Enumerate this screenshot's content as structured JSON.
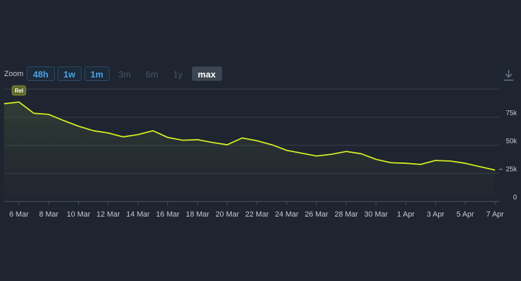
{
  "zoom": {
    "label": "Zoom",
    "buttons": [
      {
        "label": "48h",
        "state": "active"
      },
      {
        "label": "1w",
        "state": "active"
      },
      {
        "label": "1m",
        "state": "active"
      },
      {
        "label": "3m",
        "state": "disabled"
      },
      {
        "label": "6m",
        "state": "disabled"
      },
      {
        "label": "1y",
        "state": "disabled"
      },
      {
        "label": "max",
        "state": "selected"
      }
    ]
  },
  "download_icon": "download-icon",
  "colors": {
    "background": "#1e2430",
    "line": "#d5ee22",
    "grid": "#3a4150",
    "text": "#c6cbd3",
    "button_accent": "#4ba3e3"
  },
  "chart_data": {
    "type": "area",
    "x": [
      "5 Mar",
      "6 Mar",
      "7 Mar",
      "8 Mar",
      "9 Mar",
      "10 Mar",
      "11 Mar",
      "12 Mar",
      "13 Mar",
      "14 Mar",
      "15 Mar",
      "16 Mar",
      "17 Mar",
      "18 Mar",
      "19 Mar",
      "20 Mar",
      "21 Mar",
      "22 Mar",
      "23 Mar",
      "24 Mar",
      "25 Mar",
      "26 Mar",
      "27 Mar",
      "28 Mar",
      "29 Mar",
      "30 Mar",
      "31 Mar",
      "1 Apr",
      "2 Apr",
      "3 Apr",
      "4 Apr",
      "5 Apr",
      "6 Apr",
      "7 Apr"
    ],
    "series": [
      {
        "values": [
          87000,
          88500,
          78500,
          77500,
          72000,
          67000,
          63000,
          61000,
          57500,
          59500,
          63000,
          57000,
          54500,
          55000,
          52500,
          50500,
          56500,
          54000,
          50500,
          45500,
          43000,
          40500,
          42000,
          44500,
          42500,
          37500,
          34500,
          34000,
          33000,
          36500,
          36000,
          34000,
          31000,
          28000
        ]
      }
    ],
    "x_ticks": [
      "6 Mar",
      "8 Mar",
      "10 Mar",
      "12 Mar",
      "14 Mar",
      "16 Mar",
      "18 Mar",
      "20 Mar",
      "22 Mar",
      "24 Mar",
      "26 Mar",
      "28 Mar",
      "30 Mar",
      "1 Apr",
      "3 Apr",
      "5 Apr",
      "7 Apr"
    ],
    "y_ticks": [
      "0",
      "25k",
      "50k",
      "75k"
    ],
    "y_tick_values": [
      0,
      25000,
      50000,
      75000
    ],
    "ylim": [
      0,
      100000
    ],
    "annotation": {
      "label": "Rel",
      "x": "6 Mar"
    },
    "grid": true
  }
}
